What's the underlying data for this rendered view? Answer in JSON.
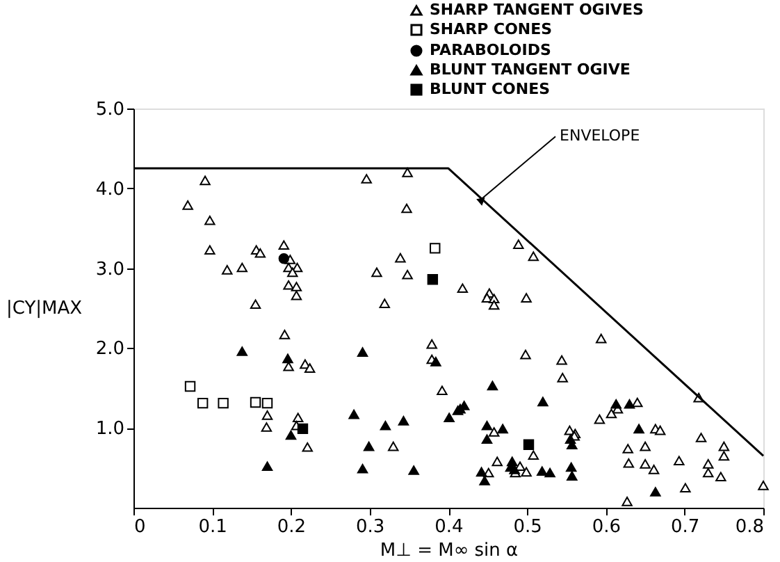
{
  "chart_data": {
    "type": "scatter",
    "xlabel": "M⊥ = M∞ sin α",
    "ylabel": "|CY|MAX",
    "xlim": [
      0,
      0.8
    ],
    "xticks": [
      0,
      0.1,
      0.2,
      0.3,
      0.4,
      0.5,
      0.6,
      0.7,
      0.8
    ],
    "ylim": [
      0,
      5
    ],
    "yticks": [
      {
        "value": 1,
        "label": "1.0"
      },
      {
        "value": 2,
        "label": "2.0"
      },
      {
        "value": 3,
        "label": "3.0"
      },
      {
        "value": 4,
        "label": "4.0"
      },
      {
        "value": 5,
        "label": "5.0"
      }
    ],
    "grid": false,
    "legend": "top right",
    "annotations": [
      {
        "text": "ENVELOPE",
        "x": 0.44,
        "y": 3.85
      }
    ],
    "series": [
      {
        "name": "SHARP TANGENT OGIVES",
        "color": "#000000",
        "marker": "triangle",
        "x": [
          0.091,
          0.069,
          0.097,
          0.097,
          0.119,
          0.138,
          0.156,
          0.161,
          0.155,
          0.191,
          0.199,
          0.197,
          0.208,
          0.202,
          0.197,
          0.207,
          0.207,
          0.192,
          0.197,
          0.218,
          0.224,
          0.17,
          0.169,
          0.209,
          0.207,
          0.221,
          0.296,
          0.348,
          0.347,
          0.339,
          0.309,
          0.348,
          0.319,
          0.418,
          0.452,
          0.449,
          0.458,
          0.458,
          0.499,
          0.489,
          0.508,
          0.379,
          0.379,
          0.392,
          0.498,
          0.544,
          0.545,
          0.33,
          0.458,
          0.508,
          0.554,
          0.561,
          0.462,
          0.451,
          0.485,
          0.491,
          0.499,
          0.594,
          0.718,
          0.615,
          0.64,
          0.607,
          0.592,
          0.663,
          0.669,
          0.56,
          0.628,
          0.65,
          0.721,
          0.75,
          0.75,
          0.629,
          0.65,
          0.661,
          0.693,
          0.73,
          0.73,
          0.746,
          0.701,
          0.627,
          0.8
        ],
        "values": [
          4.1,
          3.79,
          3.6,
          3.23,
          2.98,
          3.01,
          3.23,
          3.19,
          2.55,
          3.29,
          3.11,
          3.01,
          3.01,
          2.95,
          2.79,
          2.77,
          2.66,
          2.17,
          1.77,
          1.8,
          1.75,
          1.16,
          1.01,
          1.13,
          1.03,
          0.76,
          4.12,
          4.2,
          3.75,
          3.13,
          2.95,
          2.92,
          2.56,
          2.75,
          2.69,
          2.63,
          2.62,
          2.54,
          2.63,
          3.3,
          3.15,
          2.05,
          1.86,
          1.47,
          1.92,
          1.85,
          1.63,
          0.77,
          0.95,
          0.66,
          0.97,
          0.93,
          0.58,
          0.44,
          0.44,
          0.52,
          0.45,
          2.12,
          1.38,
          1.24,
          1.32,
          1.18,
          1.11,
          0.99,
          0.97,
          0.9,
          0.74,
          0.77,
          0.88,
          0.77,
          0.65,
          0.56,
          0.55,
          0.48,
          0.59,
          0.55,
          0.44,
          0.39,
          0.25,
          0.08,
          0.28
        ]
      },
      {
        "name": "SHARP CONES",
        "color": "#000000",
        "marker": "square",
        "x": [
          0.072,
          0.088,
          0.114,
          0.155,
          0.17,
          0.383
        ],
        "values": [
          1.52,
          1.31,
          1.31,
          1.32,
          1.31,
          3.25
        ]
      },
      {
        "name": "PARABOLOIDS",
        "color": "#000000",
        "marker": "circle",
        "x": [
          0.191
        ],
        "values": [
          3.12
        ]
      },
      {
        "name": "BLUNT TANGENT OGIVE",
        "color": "#000000",
        "marker": "triangle",
        "x": [
          0.138,
          0.196,
          0.2,
          0.17,
          0.291,
          0.384,
          0.456,
          0.52,
          0.28,
          0.32,
          0.343,
          0.299,
          0.291,
          0.356,
          0.401,
          0.412,
          0.415,
          0.42,
          0.449,
          0.469,
          0.449,
          0.556,
          0.557,
          0.442,
          0.446,
          0.481,
          0.479,
          0.484,
          0.519,
          0.529,
          0.613,
          0.63,
          0.642,
          0.555,
          0.557,
          0.663
        ],
        "values": [
          1.96,
          1.87,
          0.91,
          0.52,
          1.95,
          1.83,
          1.53,
          1.33,
          1.17,
          1.03,
          1.09,
          0.77,
          0.49,
          0.47,
          1.13,
          1.22,
          1.24,
          1.28,
          1.03,
          0.99,
          0.86,
          0.51,
          0.4,
          0.45,
          0.34,
          0.58,
          0.51,
          0.48,
          0.46,
          0.44,
          1.3,
          1.3,
          0.99,
          0.86,
          0.79,
          0.2
        ]
      },
      {
        "name": "BLUNT CONES",
        "color": "#000000",
        "marker": "square",
        "x": [
          0.215,
          0.38,
          0.502
        ],
        "values": [
          0.99,
          2.86,
          0.79
        ]
      },
      {
        "type": "line",
        "color": "#000000",
        "line_style": "solid",
        "marker": "none",
        "x": [
          0,
          0.4,
          0.8
        ],
        "values": [
          4.25,
          4.25,
          0.65
        ]
      }
    ]
  }
}
